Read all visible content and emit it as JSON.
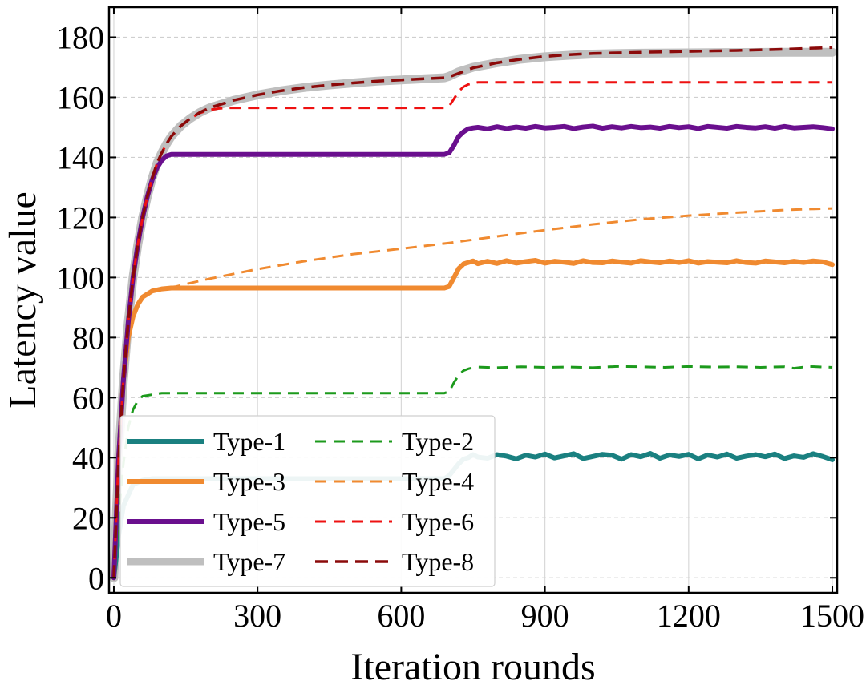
{
  "chart_data": {
    "type": "line",
    "title": "",
    "xlabel": "Iteration rounds",
    "ylabel": "Latency value",
    "xlim": [
      -10,
      1510
    ],
    "ylim": [
      -5,
      190
    ],
    "xticks": [
      0,
      300,
      600,
      900,
      1200,
      1500
    ],
    "yticks": [
      0,
      20,
      40,
      60,
      80,
      100,
      120,
      140,
      160,
      180
    ],
    "grid": true,
    "legend_position": "lower-left",
    "legend_columns": 2,
    "series": [
      {
        "name": "Type-1",
        "color": "#1a8080",
        "style": "solid",
        "width": 6,
        "x": [
          0,
          10,
          20,
          40,
          60,
          80,
          100,
          150,
          200,
          300,
          400,
          500,
          600,
          690,
          700,
          710,
          720,
          730,
          740,
          750,
          760,
          780,
          800,
          820,
          840,
          860,
          880,
          900,
          920,
          940,
          960,
          980,
          1000,
          1020,
          1040,
          1060,
          1080,
          1100,
          1120,
          1140,
          1160,
          1180,
          1200,
          1220,
          1240,
          1260,
          1280,
          1300,
          1320,
          1340,
          1360,
          1380,
          1400,
          1420,
          1440,
          1460,
          1480,
          1500
        ],
        "y": [
          0,
          14,
          24,
          31,
          32.5,
          33,
          33,
          33,
          33,
          33,
          33,
          33,
          33,
          33,
          34,
          36,
          38,
          39.5,
          40,
          41,
          40.2,
          39.8,
          41,
          40.5,
          39.6,
          40.8,
          40.2,
          41.2,
          39.9,
          40.6,
          41.3,
          39.7,
          40.4,
          41.1,
          40.8,
          39.5,
          41,
          40.3,
          41.4,
          39.8,
          40.9,
          40.4,
          41.1,
          39.6,
          40.9,
          40.2,
          41.2,
          39.8,
          40.5,
          41,
          40.3,
          41.2,
          39.7,
          40.6,
          40.1,
          41.3,
          40.4,
          39.3
        ]
      },
      {
        "name": "Type-2",
        "color": "#1c9a1c",
        "style": "dashed",
        "width": 3,
        "x": [
          0,
          10,
          20,
          30,
          40,
          50,
          60,
          80,
          100,
          150,
          200,
          300,
          400,
          500,
          600,
          690,
          700,
          710,
          720,
          730,
          740,
          750,
          760,
          800,
          850,
          900,
          950,
          1000,
          1050,
          1100,
          1150,
          1200,
          1250,
          1300,
          1350,
          1400,
          1420,
          1450,
          1500
        ],
        "y": [
          0,
          20,
          38,
          50,
          56,
          59,
          60.5,
          61,
          61.5,
          61.5,
          61.5,
          61.5,
          61.5,
          61.5,
          61.5,
          61.5,
          62,
          65,
          67.5,
          69,
          69.6,
          70,
          70.2,
          70,
          70.3,
          70.1,
          70.2,
          70,
          70.4,
          70.3,
          70.1,
          70.4,
          70.2,
          70.3,
          70.1,
          70.3,
          69.8,
          70.4,
          70.1
        ]
      },
      {
        "name": "Type-3",
        "color": "#f08a30",
        "style": "solid",
        "width": 6,
        "x": [
          0,
          10,
          20,
          30,
          40,
          50,
          60,
          80,
          100,
          120,
          150,
          200,
          300,
          400,
          500,
          600,
          690,
          700,
          710,
          720,
          730,
          740,
          750,
          760,
          780,
          800,
          820,
          840,
          860,
          880,
          900,
          920,
          940,
          960,
          980,
          1000,
          1020,
          1040,
          1060,
          1080,
          1100,
          1120,
          1140,
          1160,
          1180,
          1200,
          1220,
          1240,
          1260,
          1280,
          1300,
          1320,
          1340,
          1360,
          1380,
          1400,
          1420,
          1440,
          1460,
          1480,
          1500
        ],
        "y": [
          0,
          40,
          66,
          80,
          87,
          91,
          93.5,
          95.5,
          96.2,
          96.5,
          96.5,
          96.5,
          96.5,
          96.5,
          96.5,
          96.5,
          96.5,
          97,
          100,
          103,
          104.5,
          105,
          105.5,
          104.6,
          105.4,
          104.7,
          105.6,
          104.8,
          105.3,
          105.7,
          104.8,
          105.4,
          105.1,
          104.7,
          105.6,
          105,
          104.9,
          105.5,
          105.1,
          104.8,
          105.6,
          105.2,
          104.9,
          105.5,
          105,
          105.6,
          104.8,
          105.3,
          105.1,
          104.9,
          105.6,
          105,
          104.8,
          105.5,
          105.2,
          104.9,
          105.4,
          105,
          105.5,
          105.2,
          104.3
        ]
      },
      {
        "name": "Type-4",
        "color": "#f08a30",
        "style": "dashed",
        "width": 3,
        "x": [
          0,
          10,
          20,
          30,
          40,
          60,
          80,
          100,
          130,
          150,
          200,
          300,
          400,
          500,
          600,
          700,
          800,
          900,
          1000,
          1100,
          1200,
          1300,
          1400,
          1450,
          1500
        ],
        "y": [
          0,
          40,
          66,
          80,
          87,
          93.5,
          95.8,
          96.5,
          97,
          97.8,
          99.6,
          102.8,
          105.5,
          107.8,
          109.6,
          111.5,
          113.7,
          115.8,
          117.7,
          119.4,
          120.6,
          121.6,
          122.5,
          122.8,
          123
        ]
      },
      {
        "name": "Type-5",
        "color": "#6a0f8e",
        "style": "solid",
        "width": 6,
        "x": [
          0,
          10,
          20,
          30,
          40,
          50,
          60,
          70,
          80,
          90,
          100,
          110,
          120,
          150,
          200,
          300,
          400,
          500,
          600,
          690,
          700,
          710,
          720,
          730,
          740,
          750,
          760,
          780,
          800,
          820,
          840,
          860,
          880,
          900,
          920,
          940,
          960,
          980,
          1000,
          1020,
          1040,
          1060,
          1080,
          1100,
          1120,
          1140,
          1160,
          1180,
          1200,
          1220,
          1240,
          1260,
          1280,
          1300,
          1320,
          1340,
          1360,
          1380,
          1400,
          1420,
          1440,
          1460,
          1480,
          1500
        ],
        "y": [
          0,
          40,
          66,
          85,
          100,
          111,
          120,
          127,
          132.5,
          136.5,
          139,
          140.5,
          141,
          141,
          141,
          141,
          141,
          141,
          141,
          141,
          141.5,
          144,
          147,
          148.5,
          149.5,
          149.8,
          150,
          149.5,
          150.2,
          149.6,
          150.1,
          149.7,
          150.3,
          149.8,
          150,
          150.3,
          149.6,
          150.1,
          150.4,
          149.7,
          150.2,
          149.8,
          150.3,
          149.9,
          150.1,
          149.7,
          150.3,
          149.9,
          150.2,
          149.6,
          150.3,
          150,
          149.7,
          150.3,
          150,
          149.8,
          150.2,
          149.7,
          150.3,
          149.8,
          150,
          150.2,
          149.9,
          149.5
        ]
      },
      {
        "name": "Type-6",
        "color": "#ee1111",
        "style": "dashed",
        "width": 3,
        "x": [
          0,
          10,
          20,
          30,
          40,
          50,
          60,
          70,
          80,
          90,
          100,
          110,
          120,
          140,
          160,
          180,
          200,
          220,
          240,
          300,
          400,
          500,
          600,
          690,
          700,
          710,
          720,
          730,
          740,
          750,
          760,
          800,
          900,
          1000,
          1100,
          1200,
          1300,
          1400,
          1500
        ],
        "y": [
          0,
          40,
          66,
          85,
          100,
          111,
          120,
          127,
          133,
          138,
          141.5,
          144.5,
          147,
          150.5,
          153,
          154.8,
          155.8,
          156.3,
          156.5,
          156.5,
          156.5,
          156.5,
          156.5,
          156.5,
          157,
          159.5,
          162,
          163.5,
          164.3,
          164.7,
          165,
          165,
          165,
          165,
          165,
          165,
          165,
          165,
          165
        ]
      },
      {
        "name": "Type-7",
        "color": "#bfbfbf",
        "style": "solid",
        "width": 11,
        "x": [
          0,
          10,
          20,
          30,
          40,
          50,
          60,
          70,
          80,
          90,
          100,
          110,
          120,
          140,
          160,
          180,
          200,
          250,
          300,
          350,
          400,
          450,
          500,
          550,
          600,
          650,
          690,
          700,
          720,
          750,
          800,
          850,
          900,
          950,
          1000,
          1100,
          1200,
          1300,
          1400,
          1500
        ],
        "y": [
          0,
          40,
          66,
          85,
          100,
          111,
          120,
          127,
          133,
          138,
          141.5,
          144.5,
          147,
          150.5,
          153,
          155,
          156.5,
          159,
          160.8,
          162.2,
          163.3,
          164.1,
          164.8,
          165.4,
          165.8,
          166.2,
          166.5,
          167,
          168.5,
          170,
          171.5,
          172.7,
          173.5,
          174,
          174.4,
          174.7,
          174.8,
          174.9,
          175,
          175
        ]
      },
      {
        "name": "Type-8",
        "color": "#8b0a0a",
        "style": "dashed",
        "width": 3.5,
        "x": [
          0,
          10,
          20,
          30,
          40,
          50,
          60,
          70,
          80,
          90,
          100,
          110,
          120,
          140,
          160,
          180,
          200,
          250,
          300,
          350,
          400,
          450,
          500,
          550,
          600,
          650,
          690,
          700,
          720,
          750,
          800,
          850,
          900,
          950,
          1000,
          1100,
          1200,
          1300,
          1400,
          1450,
          1500
        ],
        "y": [
          0,
          40,
          66,
          85,
          100,
          111,
          120,
          127,
          133,
          138,
          141.5,
          144.5,
          147,
          150.5,
          153,
          155,
          156.5,
          159,
          160.8,
          162.2,
          163.3,
          164.1,
          164.8,
          165.4,
          165.8,
          166.2,
          166.5,
          166.8,
          168,
          169.8,
          171.5,
          172.7,
          173.6,
          174.2,
          174.6,
          175,
          175.3,
          175.6,
          176,
          176.3,
          176.6
        ]
      }
    ]
  }
}
